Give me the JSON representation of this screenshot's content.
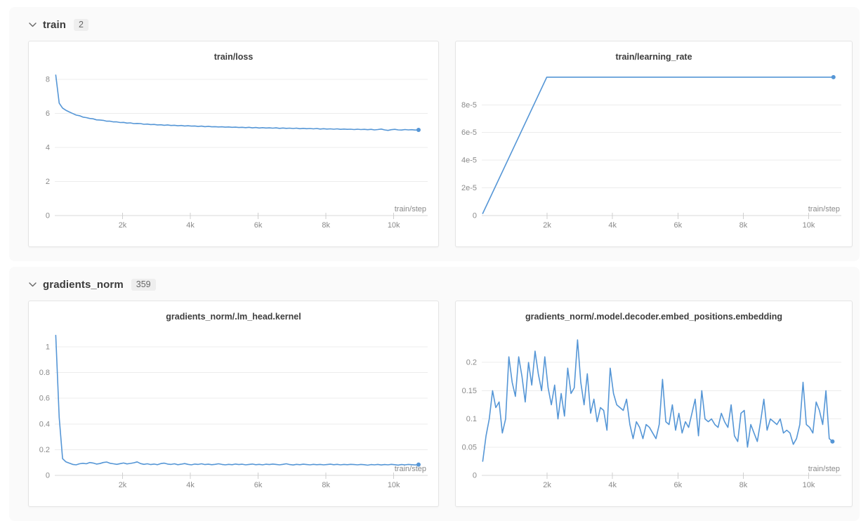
{
  "colors": {
    "accent": "#5596d6",
    "panel_bg": "#fafafa",
    "card_border": "#e4e4e4",
    "grid_line": "#ececec",
    "axis_line": "#d9d9d9",
    "tick_text": "#8a8a8a",
    "title_text": "#3d3d3d"
  },
  "sections": [
    {
      "label": "train",
      "count": "2",
      "chevron_icon": "chevron-down",
      "charts": [
        {
          "type": "line",
          "title": "train/loss",
          "xlabel": "train/step",
          "xlim": [
            0,
            11000
          ],
          "ylim": [
            0,
            8.45
          ],
          "xticks": [
            {
              "v": 2000,
              "t": "2k"
            },
            {
              "v": 4000,
              "t": "4k"
            },
            {
              "v": 6000,
              "t": "6k"
            },
            {
              "v": 8000,
              "t": "8k"
            },
            {
              "v": 10000,
              "t": "10k"
            }
          ],
          "yticks": [
            {
              "v": 0,
              "t": "0"
            },
            {
              "v": 2,
              "t": "2"
            },
            {
              "v": 4,
              "t": "4"
            },
            {
              "v": 6,
              "t": "6"
            },
            {
              "v": 8,
              "t": "8"
            }
          ],
          "series": {
            "x_start": 30,
            "x_step": 100,
            "y": [
              8.25,
              6.6,
              6.31,
              6.18,
              6.08,
              5.99,
              5.9,
              5.86,
              5.78,
              5.75,
              5.7,
              5.68,
              5.62,
              5.61,
              5.59,
              5.54,
              5.54,
              5.5,
              5.5,
              5.46,
              5.47,
              5.43,
              5.44,
              5.4,
              5.41,
              5.4,
              5.36,
              5.37,
              5.34,
              5.35,
              5.32,
              5.33,
              5.3,
              5.32,
              5.29,
              5.3,
              5.27,
              5.29,
              5.26,
              5.27,
              5.25,
              5.26,
              5.23,
              5.25,
              5.22,
              5.24,
              5.21,
              5.22,
              5.2,
              5.21,
              5.19,
              5.2,
              5.18,
              5.19,
              5.17,
              5.18,
              5.16,
              5.18,
              5.15,
              5.17,
              5.14,
              5.16,
              5.14,
              5.15,
              5.13,
              5.15,
              5.12,
              5.14,
              5.12,
              5.13,
              5.11,
              5.13,
              5.1,
              5.12,
              5.1,
              5.11,
              5.09,
              5.11,
              5.08,
              5.1,
              5.08,
              5.09,
              5.07,
              5.09,
              5.06,
              5.08,
              5.06,
              5.07,
              5.05,
              5.07,
              5.05,
              5.06,
              5.04,
              5.06,
              5.03,
              5.05,
              5.08,
              5.03,
              5.0,
              5.04,
              5.06,
              5.03,
              5.02,
              5.05,
              5.03,
              5.04,
              5.02,
              5.03
            ]
          }
        },
        {
          "type": "line",
          "title": "train/learning_rate",
          "xlabel": "train/step",
          "xlim": [
            0,
            11000
          ],
          "ylim": [
            0,
            0.000104
          ],
          "xticks": [
            {
              "v": 2000,
              "t": "2k"
            },
            {
              "v": 4000,
              "t": "4k"
            },
            {
              "v": 6000,
              "t": "6k"
            },
            {
              "v": 8000,
              "t": "8k"
            },
            {
              "v": 10000,
              "t": "10k"
            }
          ],
          "yticks": [
            {
              "v": 0,
              "t": "0"
            },
            {
              "v": 2e-05,
              "t": "2e-5"
            },
            {
              "v": 4e-05,
              "t": "4e-5"
            },
            {
              "v": 6e-05,
              "t": "6e-5"
            },
            {
              "v": 8e-05,
              "t": "8e-5"
            }
          ],
          "series": {
            "points": [
              [
                30,
                1.5e-06
              ],
              [
                1990,
                0.0001
              ],
              [
                10760,
                0.0001
              ]
            ]
          }
        }
      ]
    },
    {
      "label": "gradients_norm",
      "count": "359",
      "chevron_icon": "chevron-down",
      "charts": [
        {
          "type": "line",
          "title": "gradients_norm/.lm_head.kernel",
          "xlabel": "train/step",
          "xlim": [
            0,
            11000
          ],
          "ylim": [
            0,
            1.12
          ],
          "xticks": [
            {
              "v": 2000,
              "t": "2k"
            },
            {
              "v": 4000,
              "t": "4k"
            },
            {
              "v": 6000,
              "t": "6k"
            },
            {
              "v": 8000,
              "t": "8k"
            },
            {
              "v": 10000,
              "t": "10k"
            }
          ],
          "yticks": [
            {
              "v": 0,
              "t": "0"
            },
            {
              "v": 0.2,
              "t": "0.2"
            },
            {
              "v": 0.4,
              "t": "0.4"
            },
            {
              "v": 0.6,
              "t": "0.6"
            },
            {
              "v": 0.8,
              "t": "0.8"
            },
            {
              "v": 1,
              "t": "1"
            }
          ],
          "series": {
            "x_start": 30,
            "x_step": 100,
            "y": [
              1.09,
              0.45,
              0.13,
              0.105,
              0.095,
              0.085,
              0.082,
              0.09,
              0.094,
              0.09,
              0.1,
              0.096,
              0.088,
              0.092,
              0.1,
              0.104,
              0.094,
              0.09,
              0.086,
              0.091,
              0.096,
              0.089,
              0.093,
              0.098,
              0.105,
              0.092,
              0.086,
              0.09,
              0.084,
              0.088,
              0.083,
              0.092,
              0.095,
              0.088,
              0.085,
              0.09,
              0.083,
              0.087,
              0.092,
              0.086,
              0.082,
              0.088,
              0.085,
              0.09,
              0.084,
              0.087,
              0.083,
              0.086,
              0.09,
              0.085,
              0.082,
              0.086,
              0.083,
              0.088,
              0.084,
              0.087,
              0.082,
              0.085,
              0.088,
              0.083,
              0.086,
              0.082,
              0.087,
              0.084,
              0.088,
              0.085,
              0.082,
              0.086,
              0.09,
              0.084,
              0.081,
              0.086,
              0.083,
              0.087,
              0.084,
              0.082,
              0.086,
              0.083,
              0.085,
              0.082,
              0.084,
              0.087,
              0.083,
              0.086,
              0.082,
              0.085,
              0.083,
              0.086,
              0.084,
              0.082,
              0.085,
              0.083,
              0.079,
              0.084,
              0.082,
              0.085,
              0.081,
              0.084,
              0.082,
              0.086,
              0.083,
              0.08,
              0.084,
              0.082,
              0.085,
              0.083,
              0.081,
              0.084
            ]
          }
        },
        {
          "type": "line",
          "title": "gradients_norm/.model.decoder.embed_positions.embedding",
          "xlabel": "train/step",
          "xlim": [
            0,
            11000
          ],
          "ylim": [
            0,
            0.255
          ],
          "xticks": [
            {
              "v": 2000,
              "t": "2k"
            },
            {
              "v": 4000,
              "t": "4k"
            },
            {
              "v": 6000,
              "t": "6k"
            },
            {
              "v": 8000,
              "t": "8k"
            },
            {
              "v": 10000,
              "t": "10k"
            }
          ],
          "yticks": [
            {
              "v": 0,
              "t": "0"
            },
            {
              "v": 0.05,
              "t": "0.05"
            },
            {
              "v": 0.1,
              "t": "0.1"
            },
            {
              "v": 0.15,
              "t": "0.15"
            },
            {
              "v": 0.2,
              "t": "0.2"
            }
          ],
          "series": {
            "x_start": 30,
            "x_step": 100,
            "y": [
              0.025,
              0.07,
              0.1,
              0.15,
              0.12,
              0.13,
              0.075,
              0.1,
              0.21,
              0.165,
              0.14,
              0.21,
              0.175,
              0.13,
              0.2,
              0.16,
              0.22,
              0.18,
              0.15,
              0.21,
              0.155,
              0.125,
              0.16,
              0.1,
              0.145,
              0.105,
              0.19,
              0.145,
              0.155,
              0.24,
              0.165,
              0.125,
              0.18,
              0.11,
              0.135,
              0.095,
              0.12,
              0.115,
              0.08,
              0.19,
              0.145,
              0.125,
              0.12,
              0.115,
              0.135,
              0.09,
              0.065,
              0.095,
              0.085,
              0.065,
              0.09,
              0.085,
              0.075,
              0.065,
              0.09,
              0.17,
              0.095,
              0.09,
              0.125,
              0.08,
              0.11,
              0.075,
              0.095,
              0.085,
              0.11,
              0.135,
              0.07,
              0.15,
              0.1,
              0.095,
              0.1,
              0.09,
              0.085,
              0.11,
              0.095,
              0.085,
              0.125,
              0.07,
              0.06,
              0.11,
              0.115,
              0.05,
              0.09,
              0.075,
              0.06,
              0.095,
              0.135,
              0.08,
              0.1,
              0.095,
              0.09,
              0.1,
              0.075,
              0.08,
              0.075,
              0.055,
              0.065,
              0.09,
              0.165,
              0.09,
              0.085,
              0.075,
              0.13,
              0.115,
              0.09,
              0.15,
              0.065,
              0.06
            ]
          }
        }
      ]
    }
  ]
}
